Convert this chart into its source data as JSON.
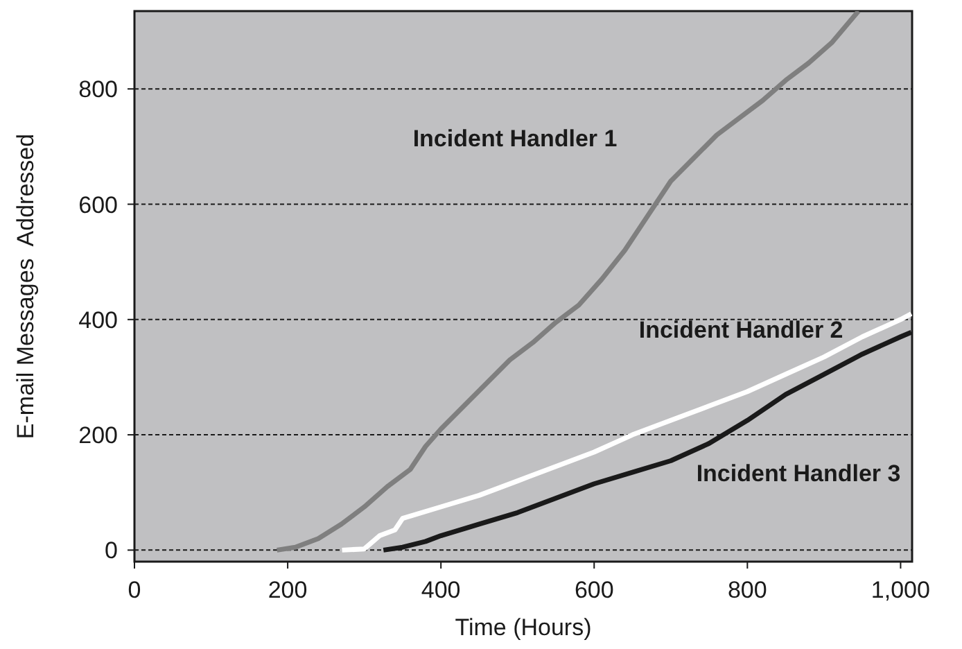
{
  "chart_data": {
    "type": "line",
    "xlabel": "Time (Hours)",
    "ylabel": "E-mail Messages  Addressed",
    "xlim": [
      0,
      1015
    ],
    "ylim": [
      -20,
      935
    ],
    "xticks": [
      0,
      200,
      400,
      600,
      800,
      {
        "value": 1000,
        "label": "1,000"
      }
    ],
    "yticks": [
      0,
      200,
      400,
      600,
      800
    ],
    "grid": "y",
    "line_style": "solid",
    "marker": "none",
    "series": [
      {
        "name": "Incident Handler 1",
        "color": "#7f7f7f",
        "x": [
          186,
          210,
          240,
          270,
          300,
          330,
          360,
          380,
          400,
          430,
          460,
          490,
          520,
          550,
          580,
          610,
          640,
          670,
          700,
          730,
          760,
          790,
          820,
          850,
          880,
          910,
          945
        ],
        "values": [
          0,
          5,
          20,
          45,
          75,
          110,
          140,
          180,
          210,
          250,
          290,
          330,
          360,
          395,
          425,
          470,
          520,
          580,
          640,
          680,
          720,
          750,
          780,
          815,
          845,
          880,
          935
        ]
      },
      {
        "name": "Incident Handler 2",
        "color": "#ffffff",
        "x": [
          271,
          300,
          320,
          340,
          350,
          400,
          450,
          500,
          550,
          600,
          650,
          700,
          750,
          800,
          850,
          900,
          950,
          1000,
          1014
        ],
        "values": [
          0,
          2,
          25,
          35,
          55,
          75,
          95,
          120,
          145,
          170,
          200,
          225,
          250,
          275,
          305,
          335,
          370,
          400,
          410
        ]
      },
      {
        "name": "Incident Handler 3",
        "color": "#1a1a1a",
        "x": [
          325,
          350,
          380,
          400,
          450,
          500,
          550,
          600,
          650,
          700,
          750,
          800,
          850,
          900,
          950,
          1000,
          1014
        ],
        "values": [
          0,
          5,
          15,
          25,
          45,
          65,
          90,
          115,
          135,
          155,
          185,
          225,
          270,
          305,
          340,
          370,
          378
        ]
      }
    ]
  }
}
